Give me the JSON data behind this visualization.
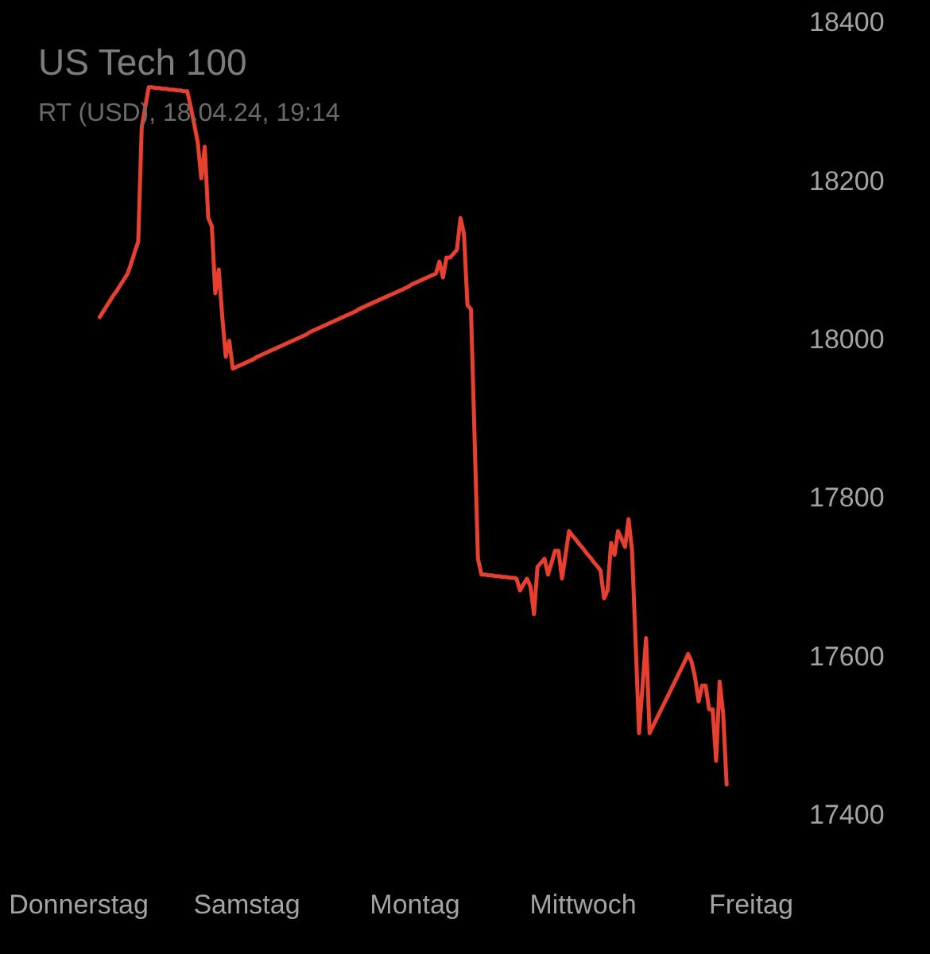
{
  "chart_data": {
    "type": "line",
    "title": "US Tech 100",
    "subtitle": "RT (USD), 18.04.24, 19:14",
    "categories": [
      "Donnerstag",
      null,
      null,
      null,
      null,
      null,
      null,
      null,
      null,
      null,
      null,
      null,
      null,
      null,
      null,
      null,
      null,
      null,
      null,
      null,
      null,
      null,
      null,
      null,
      null,
      null,
      null,
      null,
      null,
      null,
      null,
      null,
      null,
      null,
      null,
      null,
      null,
      null,
      null,
      null,
      null,
      null,
      null,
      null,
      null,
      null,
      null,
      null,
      "Samstag",
      null,
      null,
      null,
      null,
      null,
      null,
      null,
      null,
      null,
      null,
      null,
      null,
      null,
      null,
      null,
      null,
      null,
      null,
      null,
      null,
      null,
      null,
      null,
      null,
      null,
      null,
      null,
      null,
      null,
      null,
      null,
      null,
      null,
      null,
      null,
      null,
      null,
      null,
      null,
      null,
      null,
      null,
      null,
      null,
      null,
      null,
      null,
      "Montag",
      null,
      null,
      null,
      null,
      null,
      null,
      null,
      null,
      null,
      null,
      null,
      null,
      null,
      null,
      null,
      null,
      null,
      null,
      null,
      null,
      null,
      null,
      null,
      null,
      null,
      null,
      null,
      null,
      null,
      null,
      null,
      null,
      null,
      null,
      null,
      null,
      null,
      null,
      null,
      null,
      null,
      null,
      null,
      null,
      null,
      null,
      null,
      "Mittwoch",
      null,
      null,
      null,
      null,
      null,
      null,
      null,
      null,
      null,
      null,
      null,
      null,
      null,
      null,
      null,
      null,
      null,
      null,
      null,
      null,
      null,
      null,
      null,
      null,
      null,
      null,
      null,
      null,
      null,
      null,
      null,
      null,
      null,
      null,
      null,
      null,
      null,
      null,
      null,
      null,
      null,
      null,
      null,
      null,
      null,
      null,
      null,
      "Freitag"
    ],
    "values": [
      null,
      null,
      null,
      null,
      null,
      null,
      18030,
      18037,
      18044,
      18051,
      18058,
      18064,
      18071,
      18078,
      18085,
      18098,
      18112,
      18125,
      18270,
      18295,
      18320,
      18320,
      18319,
      18319,
      18318,
      18318,
      18317,
      18317,
      18316,
      18316,
      18315,
      18315,
      18295,
      18273,
      18250,
      18205,
      18245,
      18155,
      18145,
      18060,
      18090,
      18030,
      17980,
      18000,
      17965,
      17967,
      17969,
      17971,
      17973,
      17975,
      17977,
      17980,
      17982,
      17984,
      17986,
      17988,
      17990,
      17992,
      17994,
      17996,
      17998,
      18000,
      18002,
      18004,
      18006,
      18008,
      18011,
      18013,
      18015,
      18017,
      18019,
      18021,
      18023,
      18025,
      18027,
      18029,
      18031,
      18033,
      18035,
      18037,
      18040,
      18042,
      18044,
      18046,
      18048,
      18050,
      18052,
      18054,
      18056,
      18058,
      18060,
      18062,
      18064,
      18066,
      18068,
      18071,
      18073,
      18075,
      18077,
      18079,
      18081,
      18083,
      18085,
      18100,
      18080,
      18105,
      18105,
      18110,
      18115,
      18155,
      18135,
      18045,
      18040,
      17883,
      17725,
      17705,
      17705,
      17704,
      17704,
      17703,
      17703,
      17702,
      17702,
      17701,
      17701,
      17700,
      17685,
      17693,
      17700,
      17690,
      17655,
      17715,
      17720,
      17725,
      17705,
      17720,
      17735,
      17735,
      17700,
      17730,
      17760,
      17754,
      17749,
      17743,
      17738,
      17732,
      17727,
      17721,
      17716,
      17710,
      17675,
      17685,
      17745,
      17730,
      17760,
      17750,
      17740,
      17775,
      17735,
      17620,
      17505,
      17565,
      17625,
      17505,
      17514,
      17523,
      17532,
      17541,
      17550,
      17559,
      17568,
      17577,
      17586,
      17595,
      17605,
      17595,
      17575,
      17545,
      17565,
      17565,
      17535,
      17535,
      17470,
      17570,
      17530,
      17440,
      null,
      null,
      null,
      null,
      null,
      null,
      null
    ],
    "color": "#e8402f",
    "ylim": [
      17400,
      18400
    ],
    "yticks": [
      17400,
      17600,
      17800,
      18000,
      18200,
      18400
    ],
    "grid": false,
    "legend": false,
    "marker": "none",
    "line_style": "solid"
  }
}
